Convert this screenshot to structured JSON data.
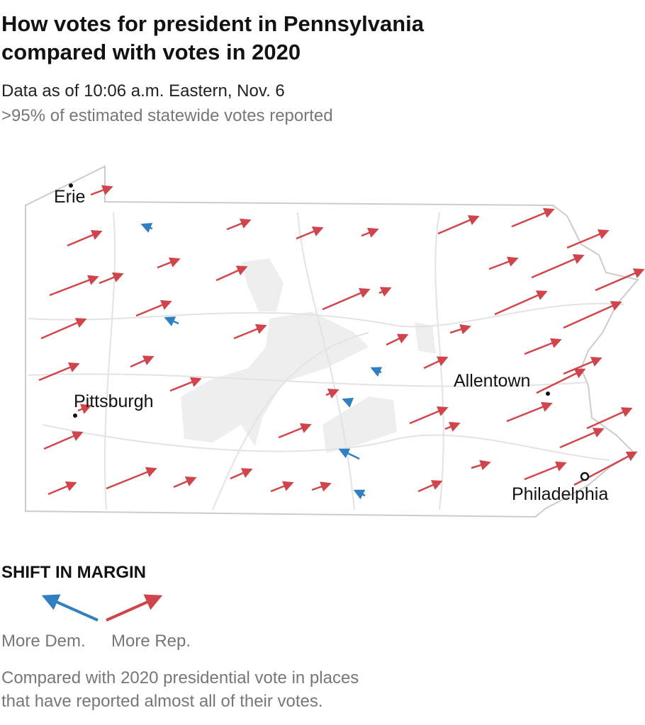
{
  "header": {
    "title_lines": [
      "How votes for president in Pennsylvania",
      "compared with votes in 2020"
    ],
    "subtitle": "Data as of 10:06 a.m. Eastern, Nov. 6",
    "note": ">95% of estimated statewide votes reported"
  },
  "map": {
    "cities": [
      "Erie",
      "Pittsburgh",
      "Allentown",
      "Philadelphia"
    ]
  },
  "legend": {
    "title": "SHIFT IN MARGIN",
    "labels": [
      "More Dem.",
      "More Rep."
    ]
  },
  "footnote_lines": [
    "Compared with 2020 presidential vote in places",
    "that have reported almost all of their votes."
  ]
}
